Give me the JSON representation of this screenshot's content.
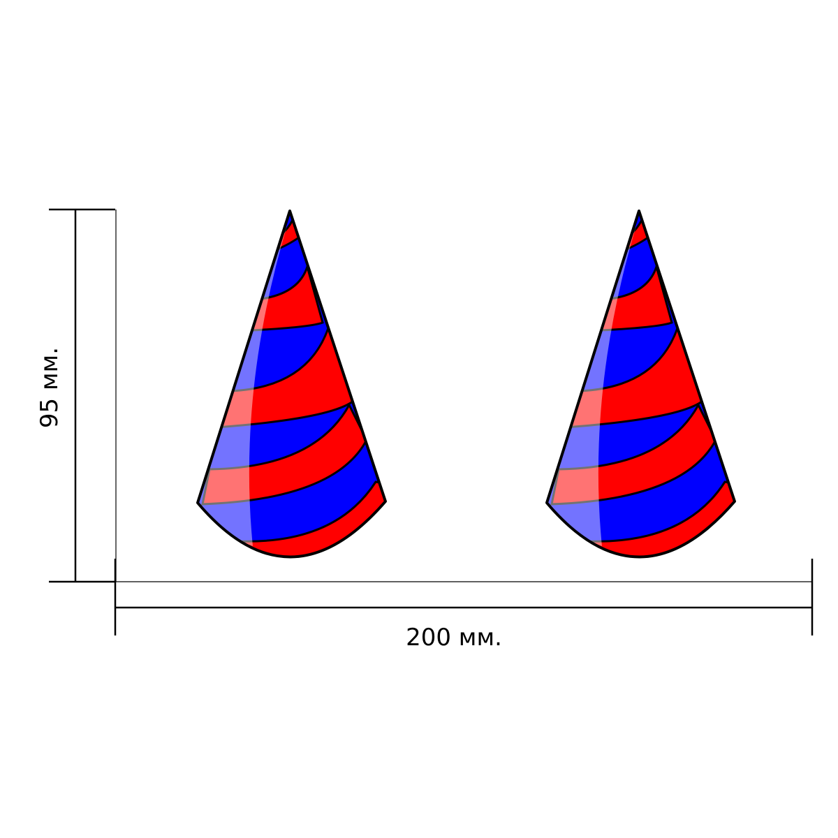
{
  "dimensions": {
    "height": "95 мм.",
    "width": "200 мм."
  }
}
